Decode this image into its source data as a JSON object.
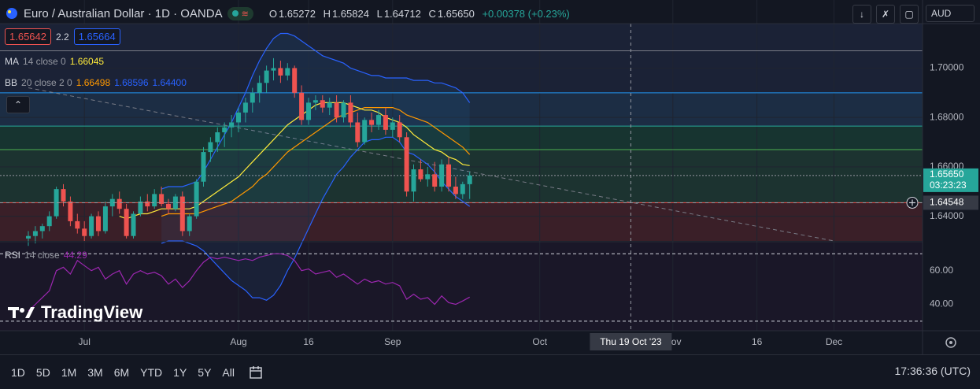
{
  "header": {
    "title": "Euro / Australian Dollar · 1D · OANDA",
    "pill_icon": "wave-icon",
    "ohlc": [
      {
        "k": "O",
        "v": "1.65272"
      },
      {
        "k": "H",
        "v": "1.65824"
      },
      {
        "k": "L",
        "v": "1.64712"
      },
      {
        "k": "C",
        "v": "1.65650"
      }
    ],
    "change": "+0.00378 (+0.23%)"
  },
  "quote": {
    "bid": "1.65642",
    "spread": "2.2",
    "ask": "1.65664"
  },
  "legends": {
    "ma": {
      "name": "MA",
      "params": "14 close 0",
      "value": "1.66045"
    },
    "bb": {
      "name": "BB",
      "params": "20 close 2 0",
      "v1": "1.66498",
      "v2": "1.68596",
      "v3": "1.64400"
    },
    "rsi": {
      "name": "RSI",
      "params": "14 close",
      "value": "44.29"
    }
  },
  "toolbar": {
    "currency": "AUD"
  },
  "watermark": "TradingView",
  "timeframes": [
    "1D",
    "5D",
    "1M",
    "3M",
    "6M",
    "YTD",
    "1Y",
    "5Y",
    "All"
  ],
  "clock": "17:36:36 (UTC)",
  "colors": {
    "up": "#26a69a",
    "down": "#ef5350",
    "ma": "#ffeb3b",
    "bb_basis": "#ff9800",
    "bb_band": "#2962ff",
    "rsi": "#9c27b0"
  },
  "chart_data": {
    "type": "candlestick",
    "price_ticks": [
      "1.70000",
      "1.68000",
      "1.66000",
      "1.64000"
    ],
    "price_tick_values": [
      1.7,
      1.68,
      1.66,
      1.64
    ],
    "price_range": [
      1.63,
      1.718
    ],
    "rsi_ticks": [
      "60.00",
      "40.00"
    ],
    "rsi_tick_values": [
      60,
      40
    ],
    "rsi_range": [
      29,
      72
    ],
    "x_labels": [
      "Jul",
      "Aug",
      "16",
      "Sep",
      "Oct",
      "Nov",
      "16",
      "Dec"
    ],
    "x_label_index": [
      8,
      30,
      40,
      52,
      73,
      92,
      104,
      115
    ],
    "crosshair_label": "Thu 19 Oct '23",
    "crosshair_index": 86,
    "last_price_label": "1.65650",
    "countdown": "03:23:23",
    "crosshair_price_label": "1.64548",
    "crosshair_price": 1.64548,
    "horizontal_levels": [
      1.707,
      1.69,
      1.6765,
      1.667,
      1.6565,
      1.6455
    ],
    "zones": [
      {
        "from": 1.69,
        "to": 1.718,
        "color": "#1b2236"
      },
      {
        "from": 1.6765,
        "to": 1.69,
        "color": "#1c2d44"
      },
      {
        "from": 1.667,
        "to": 1.6765,
        "color": "#173430"
      },
      {
        "from": 1.6455,
        "to": 1.667,
        "color": "#1c3330"
      },
      {
        "from": 1.63,
        "to": 1.6455,
        "color": "#3a1f28"
      }
    ],
    "trendline": {
      "from": [
        0,
        1.692
      ],
      "to": [
        115,
        1.63
      ]
    },
    "candles": [
      {
        "o": 1.631,
        "h": 1.634,
        "l": 1.628,
        "c": 1.632
      },
      {
        "o": 1.632,
        "h": 1.636,
        "l": 1.629,
        "c": 1.634
      },
      {
        "o": 1.634,
        "h": 1.637,
        "l": 1.631,
        "c": 1.636
      },
      {
        "o": 1.636,
        "h": 1.642,
        "l": 1.634,
        "c": 1.64
      },
      {
        "o": 1.64,
        "h": 1.652,
        "l": 1.639,
        "c": 1.651
      },
      {
        "o": 1.651,
        "h": 1.653,
        "l": 1.644,
        "c": 1.646
      },
      {
        "o": 1.646,
        "h": 1.648,
        "l": 1.636,
        "c": 1.638
      },
      {
        "o": 1.638,
        "h": 1.641,
        "l": 1.633,
        "c": 1.635
      },
      {
        "o": 1.635,
        "h": 1.638,
        "l": 1.63,
        "c": 1.632
      },
      {
        "o": 1.632,
        "h": 1.641,
        "l": 1.631,
        "c": 1.64
      },
      {
        "o": 1.64,
        "h": 1.642,
        "l": 1.632,
        "c": 1.634
      },
      {
        "o": 1.634,
        "h": 1.646,
        "l": 1.633,
        "c": 1.644
      },
      {
        "o": 1.644,
        "h": 1.649,
        "l": 1.64,
        "c": 1.647
      },
      {
        "o": 1.647,
        "h": 1.65,
        "l": 1.641,
        "c": 1.643
      },
      {
        "o": 1.643,
        "h": 1.645,
        "l": 1.631,
        "c": 1.632
      },
      {
        "o": 1.632,
        "h": 1.642,
        "l": 1.631,
        "c": 1.641
      },
      {
        "o": 1.641,
        "h": 1.648,
        "l": 1.64,
        "c": 1.646
      },
      {
        "o": 1.646,
        "h": 1.649,
        "l": 1.642,
        "c": 1.644
      },
      {
        "o": 1.644,
        "h": 1.651,
        "l": 1.643,
        "c": 1.649
      },
      {
        "o": 1.649,
        "h": 1.652,
        "l": 1.644,
        "c": 1.645
      },
      {
        "o": 1.645,
        "h": 1.647,
        "l": 1.641,
        "c": 1.643
      },
      {
        "o": 1.643,
        "h": 1.649,
        "l": 1.642,
        "c": 1.648
      },
      {
        "o": 1.648,
        "h": 1.65,
        "l": 1.632,
        "c": 1.634
      },
      {
        "o": 1.634,
        "h": 1.641,
        "l": 1.632,
        "c": 1.64
      },
      {
        "o": 1.64,
        "h": 1.655,
        "l": 1.639,
        "c": 1.654
      },
      {
        "o": 1.654,
        "h": 1.668,
        "l": 1.652,
        "c": 1.666
      },
      {
        "o": 1.666,
        "h": 1.672,
        "l": 1.662,
        "c": 1.67
      },
      {
        "o": 1.67,
        "h": 1.676,
        "l": 1.666,
        "c": 1.674
      },
      {
        "o": 1.674,
        "h": 1.678,
        "l": 1.668,
        "c": 1.676
      },
      {
        "o": 1.676,
        "h": 1.681,
        "l": 1.672,
        "c": 1.678
      },
      {
        "o": 1.678,
        "h": 1.684,
        "l": 1.674,
        "c": 1.682
      },
      {
        "o": 1.682,
        "h": 1.688,
        "l": 1.678,
        "c": 1.686
      },
      {
        "o": 1.686,
        "h": 1.692,
        "l": 1.682,
        "c": 1.69
      },
      {
        "o": 1.69,
        "h": 1.697,
        "l": 1.686,
        "c": 1.694
      },
      {
        "o": 1.694,
        "h": 1.701,
        "l": 1.69,
        "c": 1.699
      },
      {
        "o": 1.699,
        "h": 1.704,
        "l": 1.695,
        "c": 1.7
      },
      {
        "o": 1.7,
        "h": 1.703,
        "l": 1.694,
        "c": 1.697
      },
      {
        "o": 1.697,
        "h": 1.702,
        "l": 1.695,
        "c": 1.7
      },
      {
        "o": 1.7,
        "h": 1.701,
        "l": 1.688,
        "c": 1.69
      },
      {
        "o": 1.69,
        "h": 1.693,
        "l": 1.677,
        "c": 1.679
      },
      {
        "o": 1.679,
        "h": 1.688,
        "l": 1.677,
        "c": 1.686
      },
      {
        "o": 1.686,
        "h": 1.689,
        "l": 1.683,
        "c": 1.687
      },
      {
        "o": 1.687,
        "h": 1.689,
        "l": 1.682,
        "c": 1.684
      },
      {
        "o": 1.684,
        "h": 1.688,
        "l": 1.681,
        "c": 1.686
      },
      {
        "o": 1.686,
        "h": 1.689,
        "l": 1.678,
        "c": 1.68
      },
      {
        "o": 1.68,
        "h": 1.687,
        "l": 1.678,
        "c": 1.686
      },
      {
        "o": 1.686,
        "h": 1.689,
        "l": 1.676,
        "c": 1.678
      },
      {
        "o": 1.678,
        "h": 1.682,
        "l": 1.668,
        "c": 1.67
      },
      {
        "o": 1.67,
        "h": 1.68,
        "l": 1.669,
        "c": 1.679
      },
      {
        "o": 1.679,
        "h": 1.682,
        "l": 1.674,
        "c": 1.677
      },
      {
        "o": 1.677,
        "h": 1.683,
        "l": 1.675,
        "c": 1.681
      },
      {
        "o": 1.681,
        "h": 1.684,
        "l": 1.673,
        "c": 1.675
      },
      {
        "o": 1.675,
        "h": 1.68,
        "l": 1.672,
        "c": 1.678
      },
      {
        "o": 1.678,
        "h": 1.681,
        "l": 1.67,
        "c": 1.672
      },
      {
        "o": 1.672,
        "h": 1.674,
        "l": 1.648,
        "c": 1.65
      },
      {
        "o": 1.65,
        "h": 1.661,
        "l": 1.646,
        "c": 1.659
      },
      {
        "o": 1.659,
        "h": 1.663,
        "l": 1.654,
        "c": 1.655
      },
      {
        "o": 1.655,
        "h": 1.66,
        "l": 1.652,
        "c": 1.657
      },
      {
        "o": 1.657,
        "h": 1.662,
        "l": 1.65,
        "c": 1.652
      },
      {
        "o": 1.652,
        "h": 1.663,
        "l": 1.65,
        "c": 1.661
      },
      {
        "o": 1.661,
        "h": 1.664,
        "l": 1.65,
        "c": 1.652
      },
      {
        "o": 1.652,
        "h": 1.656,
        "l": 1.647,
        "c": 1.649
      },
      {
        "o": 1.649,
        "h": 1.654,
        "l": 1.647,
        "c": 1.653
      },
      {
        "o": 1.653,
        "h": 1.658,
        "l": 1.647,
        "c": 1.6565
      }
    ],
    "ma": [
      null,
      null,
      null,
      null,
      null,
      null,
      null,
      null,
      null,
      null,
      null,
      null,
      null,
      1.64,
      1.639,
      1.64,
      1.641,
      1.641,
      1.642,
      1.643,
      1.643,
      1.643,
      1.643,
      1.643,
      1.644,
      1.646,
      1.648,
      1.65,
      1.652,
      1.654,
      1.656,
      1.659,
      1.662,
      1.665,
      1.668,
      1.671,
      1.674,
      1.677,
      1.679,
      1.681,
      1.683,
      1.685,
      1.686,
      1.686,
      1.686,
      1.686,
      1.685,
      1.684,
      1.683,
      1.683,
      1.682,
      1.68,
      1.679,
      1.678,
      1.676,
      1.673,
      1.671,
      1.669,
      1.667,
      1.666,
      1.664,
      1.663,
      1.661,
      1.6605
    ],
    "bb_basis": [
      null,
      null,
      null,
      null,
      null,
      null,
      null,
      null,
      null,
      null,
      null,
      null,
      null,
      null,
      null,
      null,
      null,
      null,
      null,
      1.64,
      1.641,
      1.641,
      1.641,
      1.641,
      1.641,
      1.642,
      1.643,
      1.644,
      1.645,
      1.646,
      1.648,
      1.65,
      1.652,
      1.655,
      1.657,
      1.66,
      1.663,
      1.666,
      1.668,
      1.67,
      1.672,
      1.674,
      1.676,
      1.678,
      1.68,
      1.681,
      1.682,
      1.683,
      1.684,
      1.684,
      1.684,
      1.684,
      1.684,
      1.683,
      1.681,
      1.68,
      1.679,
      1.678,
      1.676,
      1.674,
      1.672,
      1.67,
      1.668,
      1.665
    ],
    "bb_upper": [
      null,
      null,
      null,
      null,
      null,
      null,
      null,
      null,
      null,
      null,
      null,
      null,
      null,
      null,
      null,
      null,
      null,
      null,
      null,
      1.651,
      1.652,
      1.652,
      1.652,
      1.653,
      1.654,
      1.658,
      1.663,
      1.668,
      1.673,
      1.678,
      1.684,
      1.69,
      1.697,
      1.703,
      1.708,
      1.712,
      1.714,
      1.714,
      1.713,
      1.711,
      1.709,
      1.707,
      1.705,
      1.704,
      1.703,
      1.702,
      1.7,
      1.699,
      1.698,
      1.697,
      1.697,
      1.696,
      1.696,
      1.696,
      1.696,
      1.695,
      1.695,
      1.695,
      1.694,
      1.694,
      1.693,
      1.692,
      1.69,
      1.686
    ],
    "bb_lower": [
      null,
      null,
      null,
      null,
      null,
      null,
      null,
      null,
      null,
      null,
      null,
      null,
      null,
      null,
      null,
      null,
      null,
      null,
      null,
      1.629,
      1.63,
      1.63,
      1.63,
      1.629,
      1.628,
      1.626,
      1.623,
      1.62,
      1.617,
      1.614,
      1.612,
      1.61,
      1.607,
      1.607,
      1.606,
      1.608,
      1.612,
      1.618,
      1.623,
      1.629,
      1.635,
      1.641,
      1.647,
      1.652,
      1.657,
      1.66,
      1.664,
      1.667,
      1.67,
      1.671,
      1.671,
      1.672,
      1.672,
      1.67,
      1.666,
      1.665,
      1.663,
      1.661,
      1.658,
      1.654,
      1.651,
      1.648,
      1.646,
      1.644
    ],
    "rsi": [
      36,
      40,
      44,
      48,
      60,
      62,
      58,
      66,
      63,
      60,
      62,
      55,
      58,
      60,
      52,
      58,
      60,
      58,
      59,
      57,
      52,
      55,
      50,
      54,
      60,
      65,
      68,
      67,
      68,
      67,
      66,
      67,
      66,
      68,
      69,
      70,
      70,
      69,
      66,
      60,
      61,
      58,
      59,
      60,
      56,
      58,
      55,
      52,
      55,
      53,
      54,
      52,
      53,
      51,
      43,
      46,
      43,
      44,
      40,
      45,
      41,
      40,
      42,
      44.3
    ]
  }
}
